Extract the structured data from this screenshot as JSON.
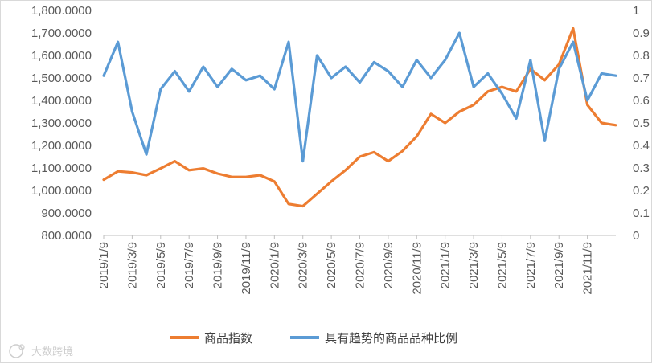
{
  "chart_data": {
    "type": "line",
    "title": "",
    "x_ticks": [
      "2019/1/9",
      "2019/3/9",
      "2019/5/9",
      "2019/7/9",
      "2019/9/9",
      "2019/11/9",
      "2020/1/9",
      "2020/3/9",
      "2020/5/9",
      "2020/7/9",
      "2020/9/9",
      "2020/11/9",
      "2021/1/9",
      "2021/3/9",
      "2021/5/9",
      "2021/7/9",
      "2021/9/9",
      "2021/11/9"
    ],
    "y_left": {
      "lim": [
        800,
        1800
      ],
      "ticks": [
        "800.0000",
        "900.0000",
        "1,000.0000",
        "1,100.0000",
        "1,200.0000",
        "1,300.0000",
        "1,400.0000",
        "1,500.0000",
        "1,600.0000",
        "1,700.0000",
        "1,800.0000"
      ],
      "tick_values": [
        800,
        900,
        1000,
        1100,
        1200,
        1300,
        1400,
        1500,
        1600,
        1700,
        1800
      ]
    },
    "y_right": {
      "lim": [
        0,
        1
      ],
      "ticks": [
        "0",
        "0.1",
        "0.2",
        "0.3",
        "0.4",
        "0.5",
        "0.6",
        "0.7",
        "0.8",
        "0.9",
        "1"
      ],
      "tick_values": [
        0,
        0.1,
        0.2,
        0.3,
        0.4,
        0.5,
        0.6,
        0.7,
        0.8,
        0.9,
        1
      ]
    },
    "x_index_range": [
      0,
      36
    ],
    "series": [
      {
        "name": "商品指数",
        "axis": "left",
        "color": "#ED7D31",
        "x": [
          0,
          1,
          2,
          3,
          4,
          5,
          6,
          7,
          8,
          9,
          10,
          11,
          12,
          13,
          14,
          15,
          16,
          17,
          18,
          19,
          20,
          21,
          22,
          23,
          24,
          25,
          26,
          27,
          28,
          29,
          30,
          31,
          32,
          33,
          34,
          35,
          36
        ],
        "values": [
          1048,
          1085,
          1080,
          1068,
          1098,
          1130,
          1090,
          1098,
          1075,
          1060,
          1060,
          1068,
          1040,
          940,
          930,
          985,
          1040,
          1090,
          1150,
          1170,
          1130,
          1175,
          1240,
          1340,
          1300,
          1350,
          1380,
          1440,
          1460,
          1440,
          1540,
          1490,
          1560,
          1720,
          1380,
          1300,
          1290
        ]
      },
      {
        "name": "具有趋势的商品品种比例",
        "axis": "right",
        "color": "#5B9BD5",
        "x": [
          0,
          1,
          2,
          3,
          4,
          5,
          6,
          7,
          8,
          9,
          10,
          11,
          12,
          13,
          14,
          15,
          16,
          17,
          18,
          19,
          20,
          21,
          22,
          23,
          24,
          25,
          26,
          27,
          28,
          29,
          30,
          31,
          32,
          33,
          34,
          35,
          36
        ],
        "values": [
          0.71,
          0.86,
          0.55,
          0.36,
          0.65,
          0.73,
          0.64,
          0.75,
          0.66,
          0.74,
          0.69,
          0.71,
          0.65,
          0.86,
          0.33,
          0.8,
          0.7,
          0.75,
          0.68,
          0.77,
          0.73,
          0.66,
          0.78,
          0.7,
          0.78,
          0.9,
          0.66,
          0.72,
          0.63,
          0.52,
          0.78,
          0.42,
          0.74,
          0.86,
          0.6,
          0.72,
          0.71
        ]
      }
    ],
    "legend_position": "bottom"
  },
  "legend": {
    "items": [
      {
        "label": "商品指数",
        "color": "#ED7D31"
      },
      {
        "label": "具有趋势的商品品种比例",
        "color": "#5B9BD5"
      }
    ]
  },
  "watermark": "大数跨境",
  "colors": {
    "axis": "#BFBFBF",
    "tick_text": "#595959",
    "legend_text": "#404040"
  }
}
